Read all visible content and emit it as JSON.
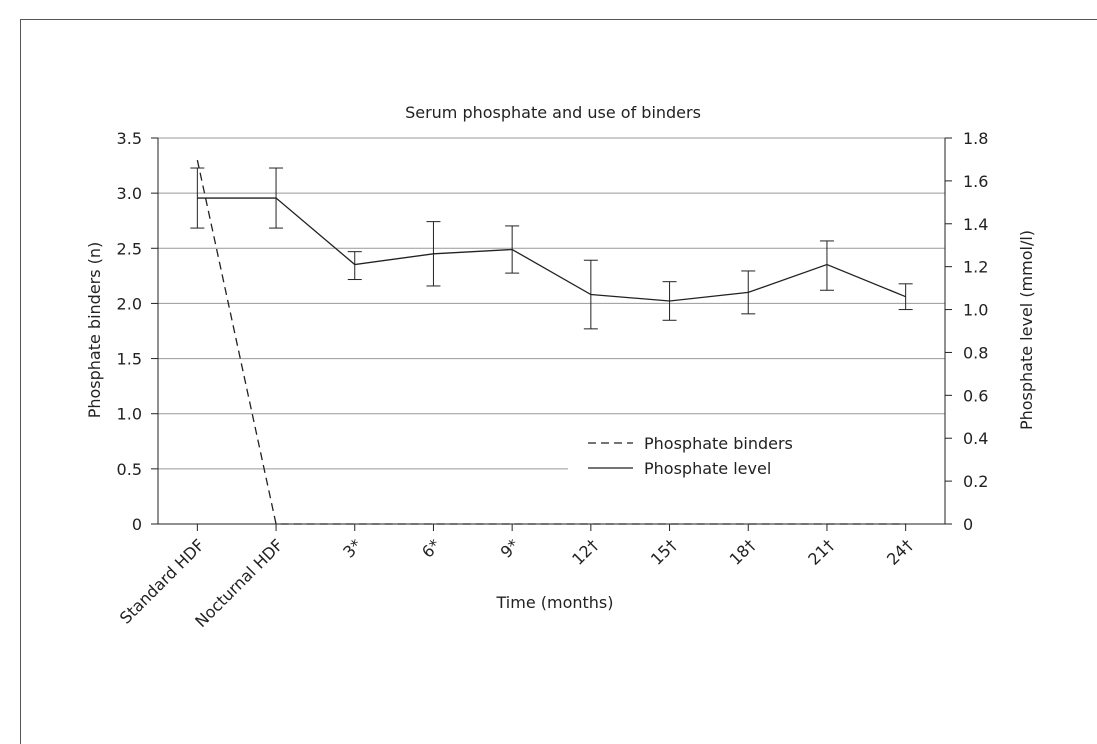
{
  "chart_data": {
    "type": "line",
    "title": "Serum phosphate and use of binders",
    "xlabel": "Time (months)",
    "ylabel_left": "Phosphate binders (n)",
    "ylabel_right": "Phosphate level (mmol/l)",
    "categories": [
      "Standard HDF",
      "Nocturnal HDF",
      "3*",
      "6*",
      "9*",
      "12†",
      "15†",
      "18†",
      "21†",
      "24†"
    ],
    "ylim_left": [
      0,
      3.5
    ],
    "ylim_right": [
      0,
      1.8
    ],
    "yticks_left": [
      "0",
      "0.5",
      "1.0",
      "1.5",
      "2.0",
      "2.5",
      "3.0",
      "3.5"
    ],
    "yticks_right": [
      "0",
      "0.2",
      "0.4",
      "0.6",
      "0.8",
      "1.0",
      "1.2",
      "1.4",
      "1.6",
      "1.8"
    ],
    "grid": "horizontal",
    "legend_position": "lower-right",
    "series": [
      {
        "name": "Phosphate binders",
        "axis": "left",
        "style": "dashed",
        "values": [
          3.3,
          0,
          0,
          0,
          0,
          0,
          0,
          0,
          0,
          0
        ]
      },
      {
        "name": "Phosphate level",
        "axis": "right",
        "style": "solid",
        "values": [
          1.52,
          1.52,
          1.21,
          1.26,
          1.28,
          1.07,
          1.04,
          1.08,
          1.21,
          1.06
        ],
        "error_low": [
          1.38,
          1.38,
          1.14,
          1.11,
          1.17,
          0.91,
          0.95,
          0.98,
          1.09,
          1.0
        ],
        "error_high": [
          1.66,
          1.66,
          1.27,
          1.41,
          1.39,
          1.23,
          1.13,
          1.18,
          1.32,
          1.12
        ]
      }
    ]
  }
}
